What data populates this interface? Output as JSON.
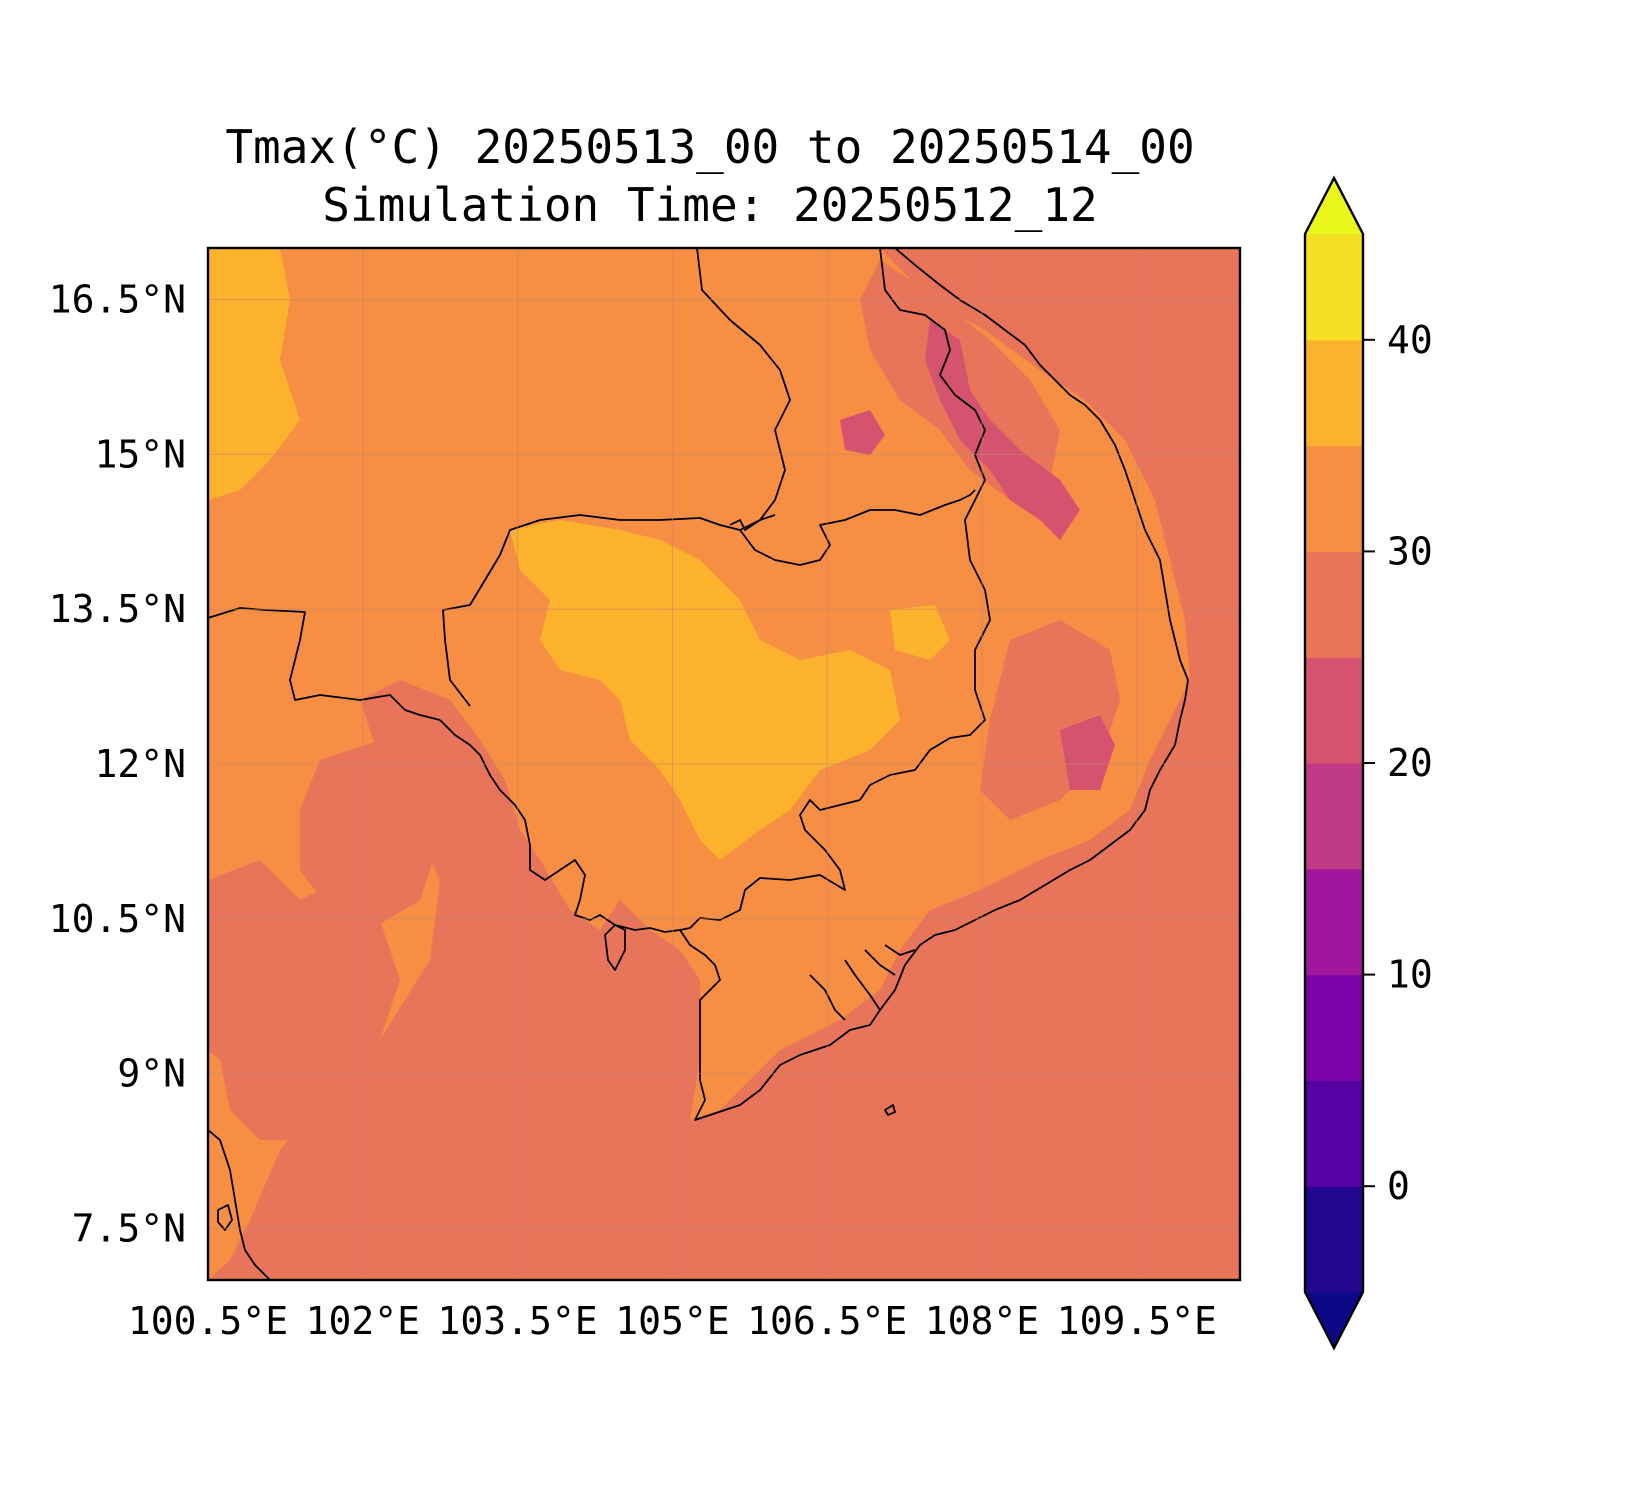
{
  "title": {
    "line1": "Tmax(°C) 20250513_00 to 20250514_00",
    "line2": "Simulation Time: 20250512_12"
  },
  "map": {
    "lon_range": [
      100.5,
      110.5
    ],
    "lat_range": [
      7.0,
      17.0
    ],
    "lon_ticks": [
      {
        "value": 100.5,
        "label": "100.5°E"
      },
      {
        "value": 102.0,
        "label": "102°E"
      },
      {
        "value": 103.5,
        "label": "103.5°E"
      },
      {
        "value": 105.0,
        "label": "105°E"
      },
      {
        "value": 106.5,
        "label": "106.5°E"
      },
      {
        "value": 108.0,
        "label": "108°E"
      },
      {
        "value": 109.5,
        "label": "109.5°E"
      }
    ],
    "lat_ticks": [
      {
        "value": 16.5,
        "label": "16.5°N"
      },
      {
        "value": 15.0,
        "label": "15°N"
      },
      {
        "value": 13.5,
        "label": "13.5°N"
      },
      {
        "value": 12.0,
        "label": "12°N"
      },
      {
        "value": 10.5,
        "label": "10.5°N"
      },
      {
        "value": 9.0,
        "label": "9°N"
      },
      {
        "value": 7.5,
        "label": "7.5°N"
      }
    ],
    "gridlines": true,
    "background_level_color": "#e8745a"
  },
  "colorbar": {
    "levels": [
      -5,
      0,
      5,
      10,
      15,
      20,
      25,
      30,
      35,
      40,
      45
    ],
    "extend": "both",
    "colors": [
      "#0d0887",
      "#220690",
      "#41049d",
      "#5d01a6",
      "#7a02a8",
      "#9511a1",
      "#ad2896",
      "#c33d80",
      "#d5546e",
      "#e76f5a",
      "#f68d45",
      "#fcaf2c",
      "#f8d724",
      "#f0f921"
    ],
    "band_colors": [
      "#230690",
      "#5601a3",
      "#7c02a8",
      "#a0179e",
      "#bf3984",
      "#d5536f",
      "#e8745a",
      "#f68e44",
      "#fcb22c",
      "#f5e023"
    ],
    "under_color": "#0d0887",
    "over_color": "#eaf81e",
    "ticks": [
      {
        "value": 0,
        "label": "0"
      },
      {
        "value": 10,
        "label": "10"
      },
      {
        "value": 20,
        "label": "20"
      },
      {
        "value": 30,
        "label": "30"
      },
      {
        "value": 40,
        "label": "40"
      }
    ]
  }
}
